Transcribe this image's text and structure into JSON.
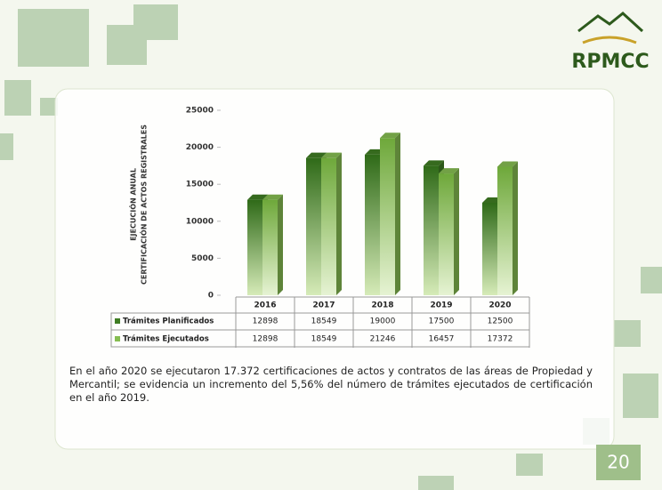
{
  "logo": {
    "text": "RPMCC"
  },
  "chart_data": {
    "type": "bar3d",
    "ylabel": [
      "EJECUCIÓN ANUAL",
      "CERTIFICACIÓN DE ACTOS REGISTRALES"
    ],
    "categories": [
      "2016",
      "2017",
      "2018",
      "2019",
      "2020"
    ],
    "series": [
      {
        "name": "Trámites Planificados",
        "color": "#3f7d23",
        "values": [
          12898,
          18549,
          19000,
          17500,
          12500
        ]
      },
      {
        "name": "Trámites Ejecutados",
        "color": "#86bd52",
        "values": [
          12898,
          18549,
          21246,
          16457,
          17372
        ]
      }
    ],
    "ylim": [
      0,
      25000
    ],
    "yticks": [
      0,
      5000,
      10000,
      15000,
      20000,
      25000
    ],
    "grid": false
  },
  "text": "En el año 2020 se ejecutaron 17.372 certificaciones de actos y contratos de las áreas de Propiedad y Mercantil; se evidencia un incremento del 5,56% del número de trámites ejecutados de certificación en el año 2019.",
  "page_number": "20"
}
